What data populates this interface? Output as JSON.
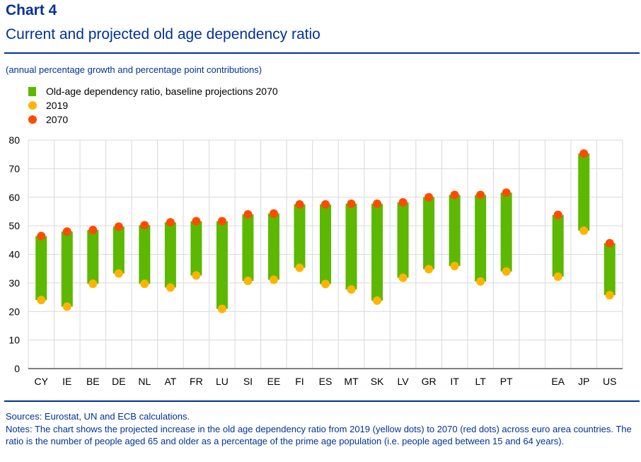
{
  "header": {
    "label": "Chart 4",
    "title": "Current and projected old age dependency ratio",
    "subtitle": "(annual percentage growth and percentage point contributions)"
  },
  "legend": [
    {
      "label": "Old-age dependency ratio, baseline projections 2070",
      "kind": "bar",
      "color": "#5CB800"
    },
    {
      "label": "2019",
      "kind": "dot",
      "color": "#FFB400"
    },
    {
      "label": "2070",
      "kind": "dot",
      "color": "#FF4B00"
    }
  ],
  "footer": {
    "sources": "Sources: Eurostat, UN and ECB calculations.",
    "notes": "Notes: The chart shows the projected increase in the old age dependency ratio from 2019 (yellow dots) to 2070 (red dots) across euro area countries. The ratio is the number of people aged 65 and older as a percentage of the prime age population (i.e. people aged between 15 and 64 years)."
  },
  "chart_data": {
    "type": "range-bar",
    "ylim": [
      0,
      80
    ],
    "yticks": [
      0,
      10,
      20,
      30,
      40,
      50,
      60,
      70,
      80
    ],
    "grid": true,
    "categories": [
      "CY",
      "IE",
      "BE",
      "DE",
      "NL",
      "AT",
      "FR",
      "LU",
      "SI",
      "EE",
      "FI",
      "ES",
      "MT",
      "SK",
      "LV",
      "GR",
      "IT",
      "LT",
      "PT",
      "",
      "EA",
      "JP",
      "US"
    ],
    "series": [
      {
        "name": "2019",
        "values": [
          24,
          21.7,
          29.7,
          33.3,
          29.7,
          28.4,
          32.6,
          20.9,
          30.7,
          31.1,
          35.3,
          29.6,
          27.7,
          23.8,
          31.8,
          34.8,
          35.9,
          30.5,
          34,
          null,
          32.2,
          48.3,
          25.7
        ]
      },
      {
        "name": "2070",
        "values": [
          46.4,
          48,
          48.5,
          49.7,
          50.2,
          51.2,
          51.6,
          51.6,
          54,
          54.3,
          57.5,
          57.5,
          57.7,
          57.7,
          58.2,
          60,
          60.8,
          60.8,
          61.6,
          null,
          53.8,
          75.3,
          43.9
        ]
      }
    ],
    "colors": {
      "bar": "#5CB800",
      "start": "#FFB400",
      "end": "#FF4B00",
      "grid": "#d9d9d9",
      "axis": "#000000"
    }
  }
}
